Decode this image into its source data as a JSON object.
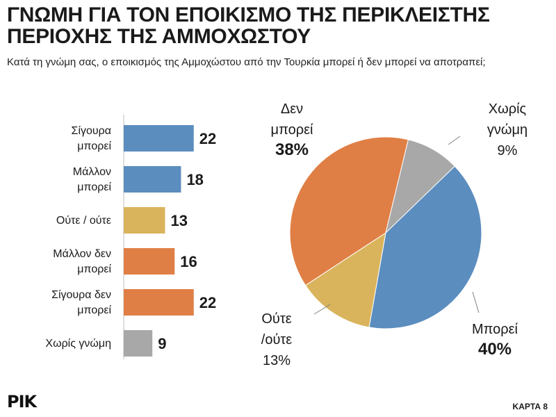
{
  "header": {
    "title_line1": "ΓΝΩΜΗ ΓΙΑ ΤΟΝ ΕΠΟΙΚΙΣΜΟ ΤΗΣ ΠΕΡΙΚΛΕΙΣΤΗΣ",
    "title_line2": "ΠΕΡΙΟΧΗΣ ΤΗΣ ΑΜΜΟΧΩΣΤΟΥ",
    "subtitle": "Κατά τη γνώμη σας, ο εποικισμός της Αμμοχώστου από την Τουρκία μπορεί ή δεν μπορεί να αποτραπεί;"
  },
  "footer": {
    "logo_text": "ΡΙΚ",
    "page_code": "ΚΑΡΤΑ 8"
  },
  "chart_data": [
    {
      "type": "bar",
      "orientation": "horizontal",
      "categories": [
        [
          "Σίγουρα",
          "μπορεί"
        ],
        [
          "Μάλλον",
          "μπορεί"
        ],
        [
          "Ούτε / ούτε"
        ],
        [
          "Μάλλον δεν",
          "μπορεί"
        ],
        [
          "Σίγουρα δεν",
          "μπορεί"
        ],
        [
          "Χωρίς γνώμη"
        ]
      ],
      "values": [
        22,
        18,
        13,
        16,
        22,
        9
      ],
      "colors": [
        "#5b8dbf",
        "#5b8dbf",
        "#d9b45c",
        "#e07f45",
        "#e07f45",
        "#a8a8a8"
      ],
      "xlim": [
        0,
        100
      ]
    },
    {
      "type": "pie",
      "slices": [
        {
          "label": [
            "Μπορεί"
          ],
          "value": 40,
          "value_label": "40%",
          "color": "#5b8dbf"
        },
        {
          "label": [
            "Ούτε",
            "/ούτε"
          ],
          "value": 13,
          "value_label": "13%",
          "color": "#d9b45c"
        },
        {
          "label": [
            "Δεν",
            "μπορεί"
          ],
          "value": 38,
          "value_label": "38%",
          "color": "#e07f45"
        },
        {
          "label": [
            "Χωρίς",
            "γνώμη"
          ],
          "value": 9,
          "value_label": "9%",
          "color": "#a8a8a8"
        }
      ]
    }
  ]
}
